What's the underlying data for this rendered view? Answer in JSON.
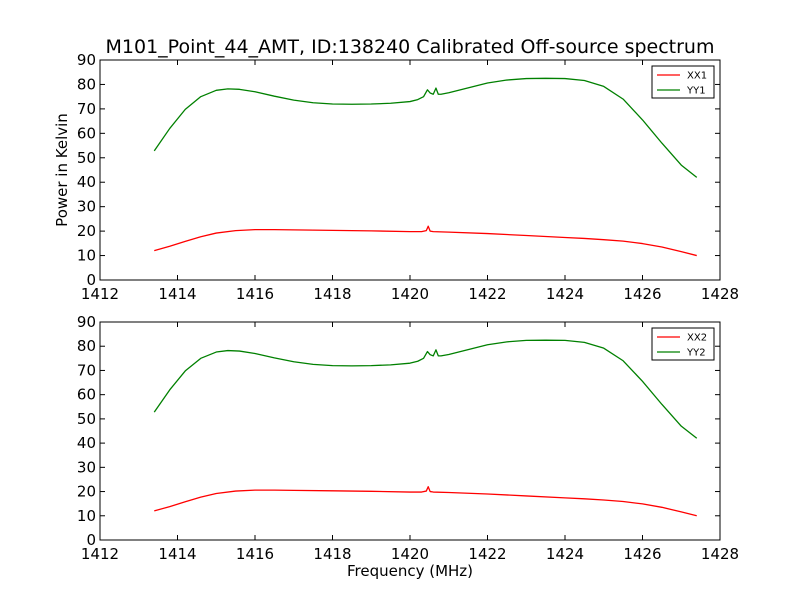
{
  "title": "M101_Point_44_AMT, ID:138240 Calibrated Off-source spectrum",
  "chart_data": [
    {
      "type": "line",
      "ylabel": "Power in Kelvin",
      "xlabel": "",
      "xlim": [
        1412,
        1428
      ],
      "ylim": [
        0,
        90
      ],
      "xticks": [
        1412,
        1414,
        1416,
        1418,
        1420,
        1422,
        1424,
        1426,
        1428
      ],
      "yticks": [
        0,
        10,
        20,
        30,
        40,
        50,
        60,
        70,
        80,
        90
      ],
      "legend_position": "top-right",
      "series": [
        {
          "name": "XX1",
          "color": "#ff0000",
          "x": [
            1413.4,
            1413.8,
            1414.2,
            1414.6,
            1415.0,
            1415.5,
            1416.0,
            1416.5,
            1417.0,
            1418.0,
            1419.0,
            1420.0,
            1420.3,
            1420.42,
            1420.47,
            1420.52,
            1420.6,
            1421.0,
            1422.0,
            1423.0,
            1424.0,
            1424.5,
            1425.0,
            1425.5,
            1426.0,
            1426.5,
            1427.0,
            1427.4
          ],
          "y": [
            12.0,
            13.8,
            15.8,
            17.7,
            19.2,
            20.2,
            20.6,
            20.6,
            20.5,
            20.3,
            20.1,
            19.8,
            19.8,
            20.2,
            22.0,
            20.0,
            19.8,
            19.6,
            19.0,
            18.2,
            17.4,
            17.0,
            16.5,
            15.9,
            14.9,
            13.5,
            11.6,
            10.0
          ]
        },
        {
          "name": "YY1",
          "color": "#008000",
          "x": [
            1413.4,
            1413.8,
            1414.2,
            1414.6,
            1415.0,
            1415.3,
            1415.6,
            1416.0,
            1416.5,
            1417.0,
            1417.5,
            1418.0,
            1418.5,
            1419.0,
            1419.5,
            1420.0,
            1420.2,
            1420.35,
            1420.45,
            1420.52,
            1420.6,
            1420.67,
            1420.73,
            1420.8,
            1421.0,
            1421.5,
            1422.0,
            1422.5,
            1423.0,
            1423.5,
            1424.0,
            1424.5,
            1425.0,
            1425.5,
            1426.0,
            1426.5,
            1427.0,
            1427.4
          ],
          "y": [
            52.8,
            62.0,
            69.8,
            75.0,
            77.6,
            78.2,
            78.0,
            77.0,
            75.2,
            73.6,
            72.5,
            72.0,
            71.9,
            72.0,
            72.3,
            73.0,
            73.8,
            75.0,
            77.8,
            76.5,
            76.0,
            78.5,
            76.0,
            76.0,
            76.6,
            78.6,
            80.6,
            81.8,
            82.4,
            82.5,
            82.4,
            81.6,
            79.2,
            74.0,
            65.5,
            56.0,
            47.0,
            42.0
          ]
        }
      ]
    },
    {
      "type": "line",
      "ylabel": "",
      "xlabel": "Frequency (MHz)",
      "xlim": [
        1412,
        1428
      ],
      "ylim": [
        0,
        90
      ],
      "xticks": [
        1412,
        1414,
        1416,
        1418,
        1420,
        1422,
        1424,
        1426,
        1428
      ],
      "yticks": [
        0,
        10,
        20,
        30,
        40,
        50,
        60,
        70,
        80,
        90
      ],
      "legend_position": "top-right",
      "series": [
        {
          "name": "XX2",
          "color": "#ff0000",
          "x": [
            1413.4,
            1413.8,
            1414.2,
            1414.6,
            1415.0,
            1415.5,
            1416.0,
            1416.5,
            1417.0,
            1418.0,
            1419.0,
            1420.0,
            1420.3,
            1420.42,
            1420.47,
            1420.52,
            1420.6,
            1421.0,
            1422.0,
            1423.0,
            1424.0,
            1424.5,
            1425.0,
            1425.5,
            1426.0,
            1426.5,
            1427.0,
            1427.4
          ],
          "y": [
            12.0,
            13.8,
            15.8,
            17.7,
            19.2,
            20.2,
            20.6,
            20.6,
            20.5,
            20.3,
            20.1,
            19.8,
            19.8,
            20.2,
            22.0,
            20.0,
            19.8,
            19.6,
            19.0,
            18.2,
            17.4,
            17.0,
            16.5,
            15.9,
            14.9,
            13.5,
            11.6,
            10.0
          ]
        },
        {
          "name": "YY2",
          "color": "#008000",
          "x": [
            1413.4,
            1413.8,
            1414.2,
            1414.6,
            1415.0,
            1415.3,
            1415.6,
            1416.0,
            1416.5,
            1417.0,
            1417.5,
            1418.0,
            1418.5,
            1419.0,
            1419.5,
            1420.0,
            1420.2,
            1420.35,
            1420.45,
            1420.52,
            1420.6,
            1420.67,
            1420.73,
            1420.8,
            1421.0,
            1421.5,
            1422.0,
            1422.5,
            1423.0,
            1423.5,
            1424.0,
            1424.5,
            1425.0,
            1425.5,
            1426.0,
            1426.5,
            1427.0,
            1427.4
          ],
          "y": [
            52.8,
            62.0,
            69.8,
            75.0,
            77.6,
            78.2,
            78.0,
            77.0,
            75.2,
            73.6,
            72.5,
            72.0,
            71.9,
            72.0,
            72.3,
            73.0,
            73.8,
            75.0,
            77.8,
            76.5,
            76.0,
            78.5,
            76.0,
            76.0,
            76.6,
            78.6,
            80.6,
            81.8,
            82.4,
            82.5,
            82.4,
            81.6,
            79.2,
            74.0,
            65.5,
            56.0,
            47.0,
            42.0
          ]
        }
      ]
    }
  ]
}
